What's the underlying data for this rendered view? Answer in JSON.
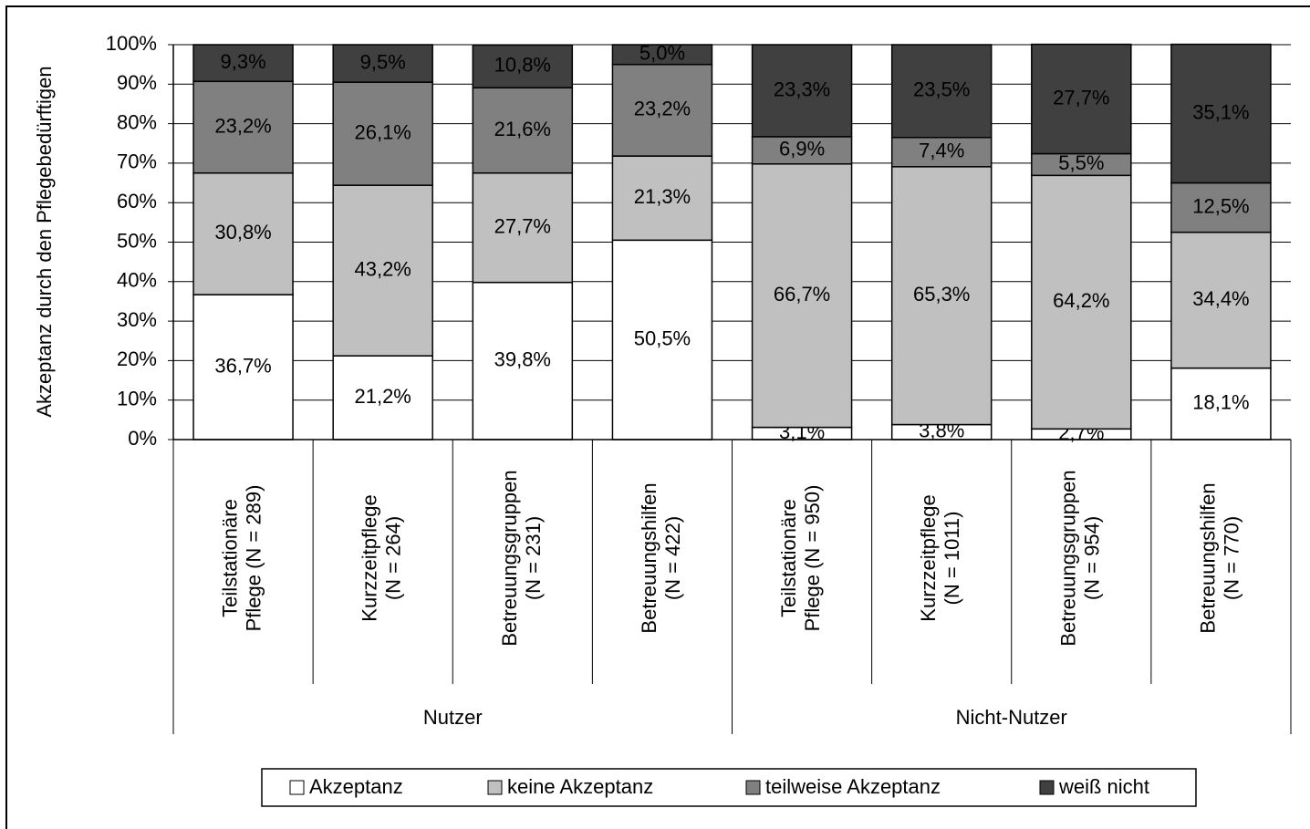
{
  "chart_data": {
    "type": "stacked_bar",
    "y_axis_label": "Akzeptanz durch den Pflegebedürftigen",
    "categories": [
      "Teilstationäre\nPflege (N = 289)",
      "Kurzzeitpflege\n(N = 264)",
      "Betreuungsgruppen\n(N = 231)",
      "Betreuungshilfen\n(N = 422)",
      "Teilstationäre\nPflege (N = 950)",
      "Kurzzeitpflege\n(N = 1011)",
      "Betreuungsgruppen\n(N = 954)",
      "Betreuungshilfen\n(N = 770)"
    ],
    "group_labels": [
      "Nutzer",
      "Nicht-Nutzer"
    ],
    "series": [
      {
        "name": "Akzeptanz",
        "color": "#ffffff",
        "values": [
          36.7,
          21.2,
          39.8,
          50.5,
          3.1,
          3.8,
          2.7,
          18.1
        ],
        "value_labels": [
          "36,7%",
          "21,2%",
          "39,8%",
          "50,5%",
          "3,1%",
          "3,8%",
          "2,7%",
          "18,1%"
        ]
      },
      {
        "name": "keine Akzeptanz",
        "color": "#c0c0c0",
        "values": [
          30.8,
          43.2,
          27.7,
          21.3,
          66.7,
          65.3,
          64.2,
          34.4
        ],
        "value_labels": [
          "30,8%",
          "43,2%",
          "27,7%",
          "21,3%",
          "66,7%",
          "65,3%",
          "64,2%",
          "34,4%"
        ]
      },
      {
        "name": "teilweise Akzeptanz",
        "color": "#808080",
        "values": [
          23.2,
          26.1,
          21.6,
          23.2,
          6.9,
          7.4,
          5.5,
          12.5
        ],
        "value_labels": [
          "23,2%",
          "26,1%",
          "21,6%",
          "23,2%",
          "6,9%",
          "7,4%",
          "5,5%",
          "12,5%"
        ]
      },
      {
        "name": "weiß nicht",
        "color": "#404040",
        "values": [
          9.3,
          9.5,
          10.8,
          5.0,
          23.3,
          23.5,
          27.7,
          35.1
        ],
        "value_labels": [
          "9,3%",
          "9,5%",
          "10,8%",
          "5,0%",
          "23,3%",
          "23,5%",
          "27,7%",
          "35,1%"
        ]
      }
    ],
    "ylim": [
      0,
      100
    ],
    "yticks": [
      {
        "value": 0,
        "label": "0%"
      },
      {
        "value": 10,
        "label": "10%"
      },
      {
        "value": 20,
        "label": "20%"
      },
      {
        "value": 30,
        "label": "30%"
      },
      {
        "value": 40,
        "label": "40%"
      },
      {
        "value": 50,
        "label": "50%"
      },
      {
        "value": 60,
        "label": "60%"
      },
      {
        "value": 70,
        "label": "70%"
      },
      {
        "value": 80,
        "label": "80%"
      },
      {
        "value": 90,
        "label": "90%"
      },
      {
        "value": 100,
        "label": "100%"
      }
    ],
    "grid": true,
    "legend": "bottom"
  }
}
